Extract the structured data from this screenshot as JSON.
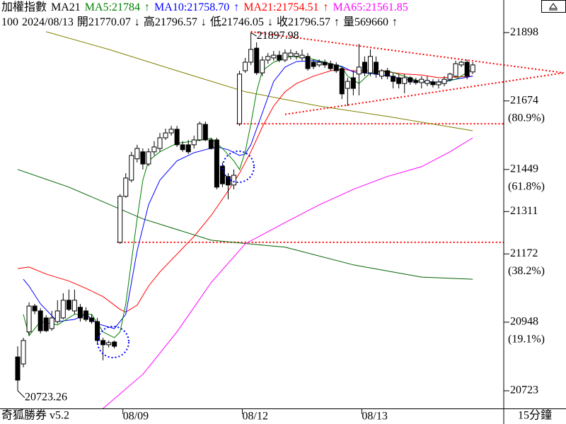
{
  "header": {
    "line1": [
      {
        "text": "加權指數",
        "color": "#000000"
      },
      {
        "text": "MA21",
        "color": "#000000"
      },
      {
        "text": "MA5:21784",
        "color": "#008000"
      },
      {
        "text": "↑",
        "color": "#008000"
      },
      {
        "text": "MA10:21758.70",
        "color": "#0000ff"
      },
      {
        "text": "↑",
        "color": "#0000ff"
      },
      {
        "text": "MA21:21754.51",
        "color": "#ff0000"
      },
      {
        "text": "↑",
        "color": "#ff0000"
      },
      {
        "text": "MA65:21561.85",
        "color": "#ff00ff"
      }
    ],
    "line2": [
      "100",
      "2024/08/13",
      "開21770.07",
      "↓",
      "高21796.57",
      "↓",
      "低21746.05",
      "↓",
      "收21796.57",
      "↑",
      "量569660",
      "↑"
    ]
  },
  "footer": {
    "brand": "奇狐勝券 v5.2",
    "period": "15分鐘"
  },
  "chart_data": {
    "type": "candlestick",
    "categories": [
      null,
      null,
      null,
      null,
      null,
      null,
      null,
      null,
      null,
      null,
      null,
      null,
      null,
      null,
      null,
      null,
      null,
      null,
      "08/09",
      null,
      null,
      null,
      null,
      null,
      null,
      null,
      null,
      null,
      null,
      null,
      null,
      null,
      null,
      null,
      null,
      null,
      null,
      null,
      null,
      "08/12",
      null,
      null,
      null,
      null,
      null,
      null,
      null,
      null,
      null,
      null,
      null,
      null,
      null,
      null,
      null,
      null,
      null,
      null,
      null,
      null,
      "08/13",
      null,
      null,
      null,
      null,
      null,
      null,
      null,
      null,
      null,
      null,
      null,
      null,
      null,
      null,
      null,
      null,
      null,
      null,
      null,
      null
    ],
    "open": [
      20834,
      20811,
      20916,
      21001,
      20985,
      20962,
      20927,
      20950,
      20962,
      21020,
      20985,
      20997,
      20985,
      20962,
      20950,
      20888,
      20874,
      20883,
      21210,
      21361,
      21414,
      21484,
      21507,
      21467,
      21507,
      21518,
      21553,
      21569,
      21581,
      21530,
      21530,
      21530,
      21546,
      21597,
      21546,
      21546,
      21460,
      21426,
      21398,
      21599,
      21773,
      21801,
      21847,
      21766,
      21808,
      21815,
      21824,
      21808,
      21820,
      21820,
      21815,
      21820,
      21801,
      21792,
      21801,
      21796,
      21792,
      21780,
      21715,
      21750,
      21762,
      21801,
      21766,
      21801,
      21755,
      21773,
      21755,
      21750,
      21731,
      21750,
      21741,
      21734,
      21731,
      21736,
      21727,
      21731,
      21745,
      21755,
      21792,
      21801,
      21769
    ],
    "high": [
      20869,
      20897,
      21013,
      21008,
      20994,
      20971,
      20985,
      21020,
      21043,
      21055,
      21055,
      21008,
      20997,
      20974,
      20962,
      20897,
      20888,
      20888,
      21368,
      21437,
      21507,
      21530,
      21518,
      21518,
      21542,
      21569,
      21583,
      21592,
      21592,
      21542,
      21546,
      21560,
      21606,
      21606,
      21553,
      21553,
      21472,
      21437,
      21449,
      21773,
      21815,
      21898,
      21866,
      21820,
      21831,
      21838,
      21838,
      21843,
      21843,
      21838,
      21843,
      21831,
      21810,
      21810,
      21810,
      21806,
      21801,
      21785,
      21750,
      21773,
      21861,
      21820,
      21843,
      21820,
      21778,
      21782,
      21766,
      21762,
      21762,
      21755,
      21750,
      21755,
      21755,
      21745,
      21745,
      21755,
      21766,
      21806,
      21806,
      21810,
      21801
    ],
    "low": [
      20723,
      20800,
      20904,
      20974,
      20911,
      20916,
      20920,
      20943,
      20957,
      20985,
      20974,
      20950,
      20950,
      20943,
      20874,
      20823,
      20865,
      20862,
      21205,
      21356,
      21407,
      21472,
      21449,
      21460,
      21495,
      21507,
      21546,
      21560,
      21523,
      21507,
      21500,
      21518,
      21542,
      21542,
      21514,
      21384,
      21391,
      21351,
      21384,
      21592,
      21766,
      21792,
      21759,
      21755,
      21796,
      21806,
      21801,
      21801,
      21810,
      21810,
      21806,
      21773,
      21778,
      21785,
      21782,
      21773,
      21766,
      21680,
      21657,
      21692,
      21692,
      21755,
      21755,
      21750,
      21745,
      21745,
      21715,
      21715,
      21699,
      21727,
      21727,
      21715,
      21722,
      21718,
      21715,
      21722,
      21738,
      21750,
      21785,
      21745,
      21762
    ],
    "close": [
      20758,
      20888,
      21001,
      20985,
      20920,
      20920,
      20962,
      20985,
      21020,
      20990,
      21020,
      20962,
      20957,
      20950,
      20888,
      20874,
      20881,
      20869,
      21361,
      21421,
      21495,
      21518,
      21467,
      21507,
      21523,
      21553,
      21569,
      21581,
      21530,
      21514,
      21507,
      21546,
      21599,
      21546,
      21518,
      21391,
      21402,
      21398,
      21430,
      21762,
      21801,
      21843,
      21766,
      21808,
      21820,
      21824,
      21808,
      21831,
      21831,
      21829,
      21824,
      21780,
      21787,
      21801,
      21792,
      21780,
      21773,
      21697,
      21738,
      21715,
      21785,
      21766,
      21820,
      21762,
      21773,
      21755,
      21738,
      21731,
      21750,
      21736,
      21734,
      21745,
      21741,
      21727,
      21736,
      21745,
      21762,
      21796,
      21801,
      21755,
      21792
    ],
    "up_color": "#ffffff",
    "down_color": "#000000",
    "lines": [
      {
        "color": "#808000",
        "x": [
          5,
          16,
          28,
          40,
          53,
          65,
          80
        ],
        "values": [
          21901,
          21843,
          21773,
          21704,
          21657,
          21623,
          21576
        ]
      },
      {
        "color": "#006400",
        "x": [
          0,
          9,
          22,
          34,
          47,
          59,
          71,
          80
        ],
        "values": [
          21449,
          21391,
          21287,
          21217,
          21194,
          21136,
          21096,
          21089
        ]
      },
      {
        "color": "#ff00ff",
        "x": [
          15,
          22,
          28,
          34,
          40,
          47,
          53,
          59,
          65,
          71,
          76,
          80
        ],
        "values": [
          20665,
          20777,
          20916,
          21078,
          21205,
          21275,
          21333,
          21384,
          21426,
          21458,
          21507,
          21553
        ]
      },
      {
        "color": "#ff0000",
        "x": [
          0,
          2,
          5,
          9,
          12,
          15,
          18,
          19,
          21,
          23,
          25,
          28,
          31,
          34,
          37,
          39,
          41,
          43,
          45,
          47,
          49,
          52,
          55,
          57,
          59,
          62,
          65,
          68,
          71,
          74,
          77,
          80
        ],
        "values": [
          21124,
          21129,
          21106,
          21083,
          21059,
          21032,
          20990,
          20981,
          21004,
          21066,
          21113,
          21171,
          21229,
          21298,
          21379,
          21437,
          21507,
          21588,
          21657,
          21704,
          21731,
          21755,
          21773,
          21778,
          21773,
          21773,
          21769,
          21762,
          21759,
          21750,
          21752,
          21755
        ]
      },
      {
        "color": "#0000ff",
        "x": [
          1,
          2,
          4,
          7,
          10,
          12,
          14,
          17,
          19,
          20,
          21,
          23,
          25,
          28,
          31,
          33,
          35,
          37,
          39,
          40,
          41,
          43,
          45,
          47,
          49,
          52,
          55,
          57,
          59,
          62,
          65,
          68,
          71,
          74,
          77,
          80
        ],
        "values": [
          21089,
          21066,
          21008,
          20950,
          20957,
          20974,
          20943,
          20927,
          20974,
          21078,
          21182,
          21333,
          21414,
          21477,
          21504,
          21514,
          21523,
          21514,
          21495,
          21500,
          21530,
          21634,
          21738,
          21785,
          21803,
          21806,
          21796,
          21787,
          21769,
          21764,
          21757,
          21745,
          21738,
          21736,
          21745,
          21755
        ]
      },
      {
        "color": "#008000",
        "x": [
          1,
          2,
          4,
          7,
          10,
          13,
          15,
          17,
          18,
          19,
          20,
          21,
          22,
          23,
          25,
          28,
          31,
          34,
          36,
          38,
          39,
          40,
          41,
          42,
          43,
          45,
          48,
          51,
          54,
          57,
          58,
          60,
          62,
          65,
          68,
          71,
          74,
          77,
          80
        ],
        "values": [
          20974,
          20904,
          20950,
          20939,
          20974,
          20974,
          20916,
          20897,
          20916,
          21008,
          21148,
          21287,
          21414,
          21477,
          21507,
          21535,
          21542,
          21551,
          21518,
          21477,
          21449,
          21507,
          21599,
          21704,
          21773,
          21801,
          21820,
          21815,
          21801,
          21785,
          21755,
          21731,
          21766,
          21773,
          21755,
          21736,
          21731,
          21745,
          21778
        ]
      }
    ],
    "trendlines": [
      {
        "color": "#ff0000",
        "x": [
          41,
          96
        ],
        "values": [
          21901,
          21766
        ]
      },
      {
        "color": "#ff0000",
        "x": [
          47,
          96
        ],
        "values": [
          21630,
          21766
        ]
      }
    ],
    "hlines": [
      {
        "color": "#ff0000",
        "value": 21599
      },
      {
        "color": "#ff0000",
        "value": 21210
      }
    ],
    "high_label": 21897.98,
    "low_label": 20723.26,
    "ylim": [
      20665,
      22005
    ],
    "yticks": [
      20723,
      20948,
      21172,
      21311,
      21449,
      21674,
      21898
    ],
    "fib_labels": [
      {
        "value": 21674,
        "label": "(80.9%)"
      },
      {
        "value": 21449,
        "label": "(61.8%)"
      },
      {
        "value": 21172,
        "label": "(38.2%)"
      },
      {
        "value": 20948,
        "label": "(19.1%)"
      }
    ]
  }
}
